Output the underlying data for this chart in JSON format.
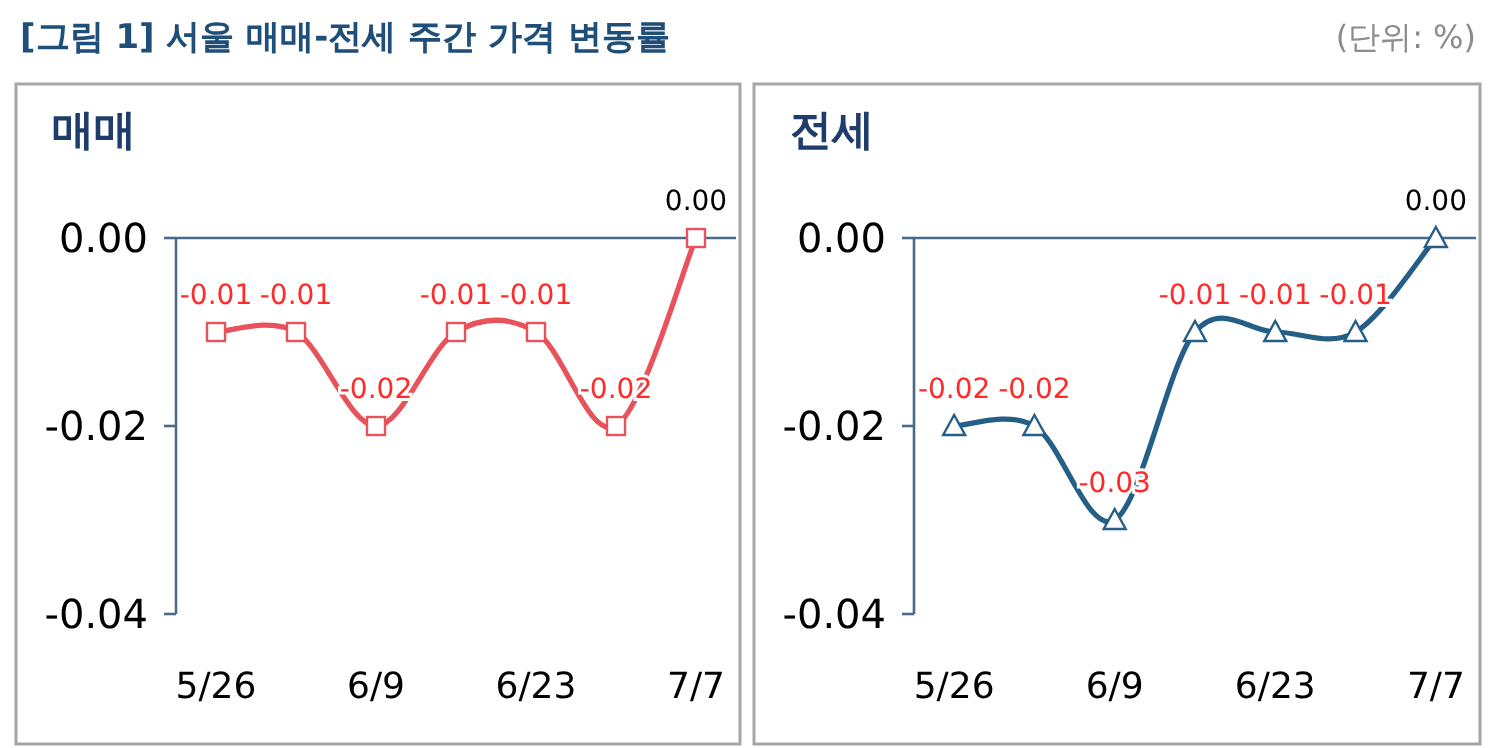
{
  "chart_data": [
    {
      "type": "other",
      "title": "[그림 1] 서울 매매-전세 주간 가격 변동률",
      "annotations": [
        "(단위: %)"
      ]
    },
    {
      "type": "line",
      "title": "매매",
      "categories": [
        "5/26",
        null,
        "6/9",
        null,
        "6/23",
        null,
        "7/7"
      ],
      "ylim": [
        -0.04,
        0
      ],
      "yticks": [
        {
          "value": 0,
          "label": "0.00"
        },
        {
          "value": -0.02,
          "label": "-0.02"
        },
        {
          "value": -0.04,
          "label": "-0.04"
        }
      ],
      "marker": "square",
      "series": [
        {
          "color": "#e8525a",
          "values": [
            -0.01,
            -0.01,
            -0.02,
            -0.01,
            -0.01,
            -0.02,
            0
          ],
          "value_labels": [
            "-0.01",
            "-0.01",
            "-0.02",
            "-0.01",
            "-0.01",
            "-0.02",
            "0.00"
          ]
        }
      ]
    },
    {
      "type": "line",
      "title": "전세",
      "categories": [
        "5/26",
        null,
        "6/9",
        null,
        "6/23",
        null,
        "7/7"
      ],
      "ylim": [
        -0.04,
        0
      ],
      "yticks": [
        {
          "value": 0,
          "label": "0.00"
        },
        {
          "value": -0.02,
          "label": "-0.02"
        },
        {
          "value": -0.04,
          "label": "-0.04"
        }
      ],
      "marker": "triangle",
      "series": [
        {
          "color": "#255e87",
          "values": [
            -0.02,
            -0.02,
            -0.03,
            -0.01,
            -0.01,
            -0.01,
            0
          ],
          "value_labels": [
            "-0.02",
            "-0.02",
            "-0.03",
            "-0.01",
            "-0.01",
            "-0.01",
            "0.00"
          ]
        }
      ]
    }
  ]
}
